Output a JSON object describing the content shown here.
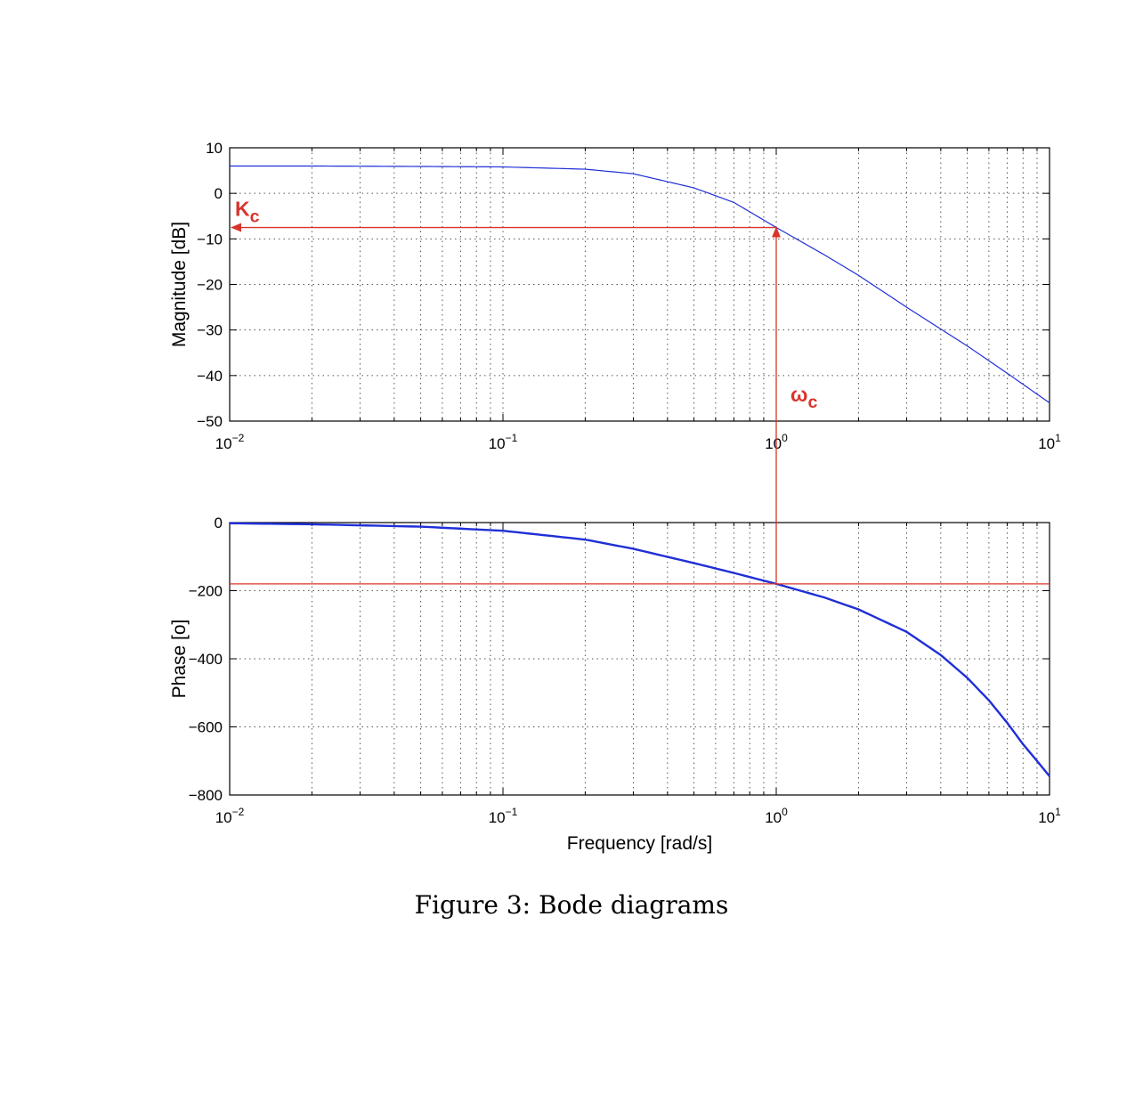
{
  "caption": "Figure 3: Bode diagrams",
  "colors": {
    "curve": "#1f2fd6",
    "annotation": "#d9342b",
    "axes": "#000000",
    "grid": "#555555"
  },
  "chart_data": [
    {
      "type": "line",
      "title": "",
      "xlabel": "",
      "ylabel": "Magnitude [dB]",
      "xscale": "log",
      "xlim": [
        0.01,
        10
      ],
      "ylim": [
        -50,
        10
      ],
      "xticks": [
        0.01,
        0.1,
        1,
        10
      ],
      "xtick_labels": [
        {
          "base": "10",
          "exp": "−2"
        },
        {
          "base": "10",
          "exp": "−1"
        },
        {
          "base": "10",
          "exp": "0"
        },
        {
          "base": "10",
          "exp": "1"
        }
      ],
      "yticks": [
        10,
        0,
        -10,
        -20,
        -30,
        -40,
        -50
      ],
      "ytick_labels": [
        "10",
        "0",
        "−10",
        "−20",
        "−30",
        "−40",
        "−50"
      ],
      "grid": true,
      "series": [
        {
          "x": [
            0.01,
            0.02,
            0.05,
            0.1,
            0.2,
            0.3,
            0.5,
            0.7,
            1,
            1.5,
            2,
            3,
            5,
            7,
            10
          ],
          "y": [
            6.0,
            6.0,
            5.9,
            5.8,
            5.3,
            4.3,
            1.2,
            -2.0,
            -7.5,
            -13.5,
            -18.0,
            -25.0,
            -33.5,
            -39.5,
            -46.0
          ]
        }
      ],
      "annotations": [
        {
          "type": "arrow",
          "from": [
            1,
            -7.5
          ],
          "to": [
            0.01,
            -7.5
          ]
        },
        {
          "type": "arrow",
          "from": [
            1,
            -50
          ],
          "to": [
            1,
            -7.5
          ]
        },
        {
          "type": "label",
          "base": "K",
          "sub": "c",
          "at": [
            0.01,
            -7.5
          ]
        },
        {
          "type": "label",
          "base": "ω",
          "sub": "c",
          "at": [
            1,
            -50
          ]
        }
      ]
    },
    {
      "type": "line",
      "title": "",
      "xlabel": "Frequency  [rad/s]",
      "ylabel": "Phase [o]",
      "xscale": "log",
      "xlim": [
        0.01,
        10
      ],
      "ylim": [
        -800,
        0
      ],
      "xticks": [
        0.01,
        0.1,
        1,
        10
      ],
      "xtick_labels": [
        {
          "base": "10",
          "exp": "−2"
        },
        {
          "base": "10",
          "exp": "−1"
        },
        {
          "base": "10",
          "exp": "0"
        },
        {
          "base": "10",
          "exp": "1"
        }
      ],
      "yticks": [
        0,
        -200,
        -400,
        -600,
        -800
      ],
      "ytick_labels": [
        "0",
        "−200",
        "−400",
        "−600",
        "−800"
      ],
      "grid": true,
      "series": [
        {
          "x": [
            0.01,
            0.02,
            0.05,
            0.1,
            0.2,
            0.3,
            0.5,
            0.7,
            1,
            1.5,
            2,
            3,
            4,
            5,
            6,
            7,
            8,
            9,
            10
          ],
          "y": [
            -2,
            -5,
            -12,
            -24,
            -50,
            -77,
            -119,
            -148,
            -180,
            -220,
            -255,
            -321,
            -389,
            -456,
            -522,
            -588,
            -651,
            -700,
            -745
          ]
        }
      ],
      "annotations": [
        {
          "type": "hline",
          "y": -180
        },
        {
          "type": "vline",
          "x": 1,
          "from": -180,
          "to": 0
        }
      ]
    }
  ]
}
